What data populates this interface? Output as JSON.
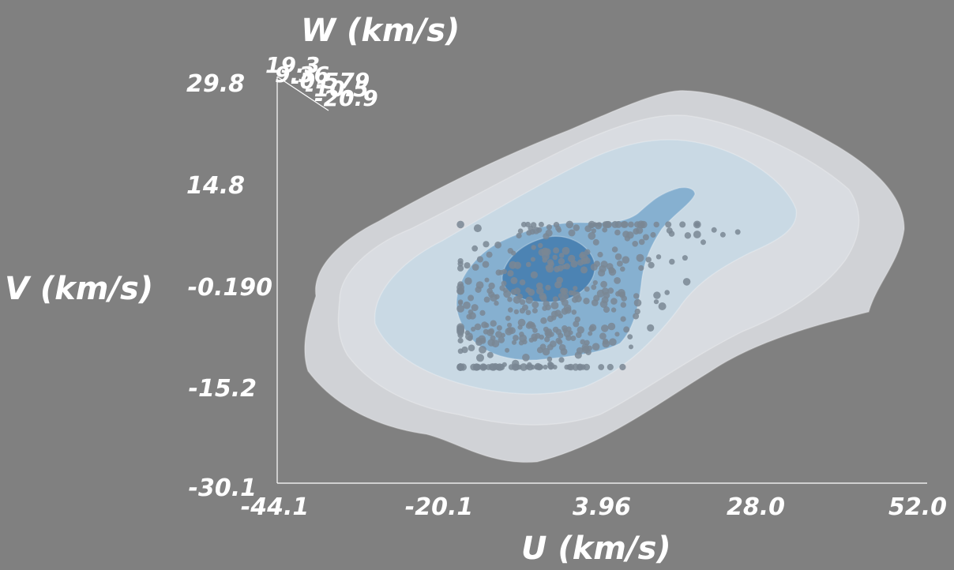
{
  "chart_data": {
    "type": "3d-isosurface-scatter",
    "xlabel": "U (km/s)",
    "ylabel": "V (km/s)",
    "zlabel": "W (km/s)",
    "x_ticks": [
      "-44.1",
      "-20.1",
      "3.96",
      "28.0",
      "52.0"
    ],
    "y_ticks": [
      "29.8",
      "14.8",
      "-0.190",
      "-15.2",
      "-30.1"
    ],
    "z_ticks": [
      "19.3",
      "9.36",
      "-0.579",
      "-10.5",
      "-20.9"
    ],
    "xlim": [
      -44.1,
      52.0
    ],
    "ylim": [
      -30.1,
      29.8
    ],
    "zlim": [
      -20.9,
      19.3
    ],
    "surfaces": [
      {
        "level": 1,
        "color": "#d4d6da",
        "opacity": 0.95
      },
      {
        "level": 2,
        "color": "#d9dde2",
        "opacity": 0.9
      },
      {
        "level": 3,
        "color": "#c6d8e4",
        "opacity": 0.9
      },
      {
        "level": 4,
        "color": "#7aa8cc",
        "opacity": 0.85
      },
      {
        "level": 5,
        "color": "#3d78ab",
        "opacity": 0.8
      }
    ],
    "points": {
      "color": "#7a8794",
      "count": 420,
      "u_center": -3.5,
      "u_spread": 8.5,
      "v_center": -2.5,
      "v_spread": 6.5
    },
    "grid": false,
    "legend": "none"
  }
}
